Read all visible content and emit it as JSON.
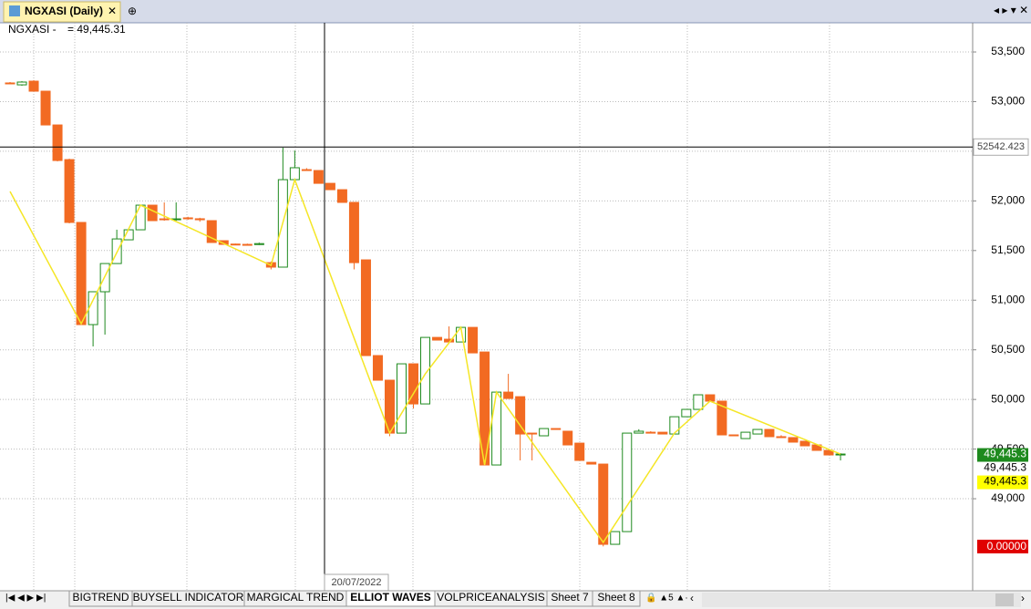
{
  "window_tab": "NGXASI (Daily)",
  "header": {
    "symbol": "NGXASI -",
    "value": "= 49,445.31"
  },
  "chart_data": {
    "type": "candlestick",
    "open": [
      53188,
      53169,
      53206,
      53105,
      52765,
      52416,
      51783,
      50754,
      51085,
      51369,
      51608,
      51709,
      51957,
      51819,
      51810,
      51829,
      51820,
      51801,
      51599,
      51565,
      51562,
      51560,
      51378,
      51333,
      52214,
      52315,
      52306,
      52177,
      52113,
      51985,
      51406,
      50442,
      50194,
      49661,
      50359,
      49955,
      50625,
      50607,
      50579,
      50726,
      50478,
      49340,
      50074,
      50028,
      49661,
      49634,
      49707,
      49680,
      49560,
      49367,
      49349,
      48541,
      48669,
      49661,
      49670,
      49670,
      49652,
      49826,
      49900,
      50047,
      49983,
      49643,
      49606,
      49652,
      49698,
      49625,
      49616,
      49579,
      49542,
      49487,
      49441
    ],
    "high": [
      53197,
      53206,
      53215,
      53105,
      52765,
      52425,
      51783,
      51085,
      51369,
      51710,
      51709,
      51957,
      51957,
      51985,
      51985,
      51840,
      51830,
      51801,
      51599,
      51570,
      51570,
      51580,
      51390,
      52536,
      52508,
      52330,
      52306,
      52177,
      52113,
      51985,
      51406,
      50442,
      50194,
      50359,
      50359,
      50625,
      50625,
      50736,
      50726,
      50726,
      50478,
      50074,
      50258,
      50028,
      49661,
      49707,
      49707,
      49680,
      49560,
      49367,
      49349,
      48669,
      49661,
      49700,
      49680,
      49670,
      49826,
      49900,
      50047,
      50047,
      49983,
      49643,
      49670,
      49698,
      49698,
      49640,
      49616,
      49579,
      49542,
      49487,
      49460
    ],
    "low": [
      53179,
      53160,
      53105,
      52765,
      52398,
      51774,
      50754,
      50534,
      50653,
      51369,
      51608,
      51709,
      51801,
      51800,
      51800,
      51810,
      51790,
      51581,
      51562,
      51555,
      51555,
      51555,
      51310,
      51333,
      52214,
      52306,
      52177,
      52113,
      51985,
      51310,
      50442,
      50194,
      49630,
      49661,
      49910,
      49955,
      50598,
      50560,
      50579,
      50469,
      49340,
      49340,
      50010,
      49386,
      49386,
      49634,
      49698,
      49542,
      49386,
      49349,
      48520,
      48541,
      48669,
      49661,
      49661,
      49652,
      49652,
      49826,
      49900,
      49983,
      49643,
      49634,
      49606,
      49652,
      49625,
      49616,
      49570,
      49533,
      49487,
      49441,
      49386
    ],
    "close": [
      53179,
      53197,
      53105,
      52765,
      52407,
      51783,
      50754,
      51085,
      51369,
      51617,
      51709,
      51957,
      51801,
      51810,
      51819,
      51820,
      51810,
      51581,
      51562,
      51562,
      51560,
      51570,
      51333,
      52214,
      52334,
      52306,
      52177,
      52113,
      51985,
      51378,
      50442,
      50194,
      49661,
      50359,
      49955,
      50625,
      50598,
      50579,
      50726,
      50469,
      49340,
      50074,
      50010,
      49652,
      49652,
      49707,
      49698,
      49542,
      49386,
      49349,
      48541,
      48669,
      49661,
      49680,
      49661,
      49652,
      49826,
      49900,
      50047,
      49983,
      49643,
      49634,
      49670,
      49698,
      49625,
      49616,
      49570,
      49533,
      49487,
      49441,
      49450
    ],
    "up_color": "#1e8a1e",
    "down_color": "#f26a22",
    "wave": {
      "x": [
        0,
        6,
        11,
        22,
        24,
        32,
        35,
        38,
        40,
        41,
        50,
        56,
        59,
        70
      ],
      "values": [
        52095,
        50763,
        51957,
        51351,
        52214,
        49661,
        50258,
        50726,
        49340,
        50074,
        48560,
        49661,
        49983,
        49450
      ],
      "color": "#f5e626"
    },
    "ylim": [
      48073,
      53794
    ],
    "yticks": [
      {
        "value": 49000,
        "label": "49,000"
      },
      {
        "value": 49500,
        "label": "49,500"
      },
      {
        "value": 50000,
        "label": "50,000"
      },
      {
        "value": 50500,
        "label": "50,500"
      },
      {
        "value": 51000,
        "label": "51,000"
      },
      {
        "value": 51500,
        "label": "51,500"
      },
      {
        "value": 52000,
        "label": "52,000"
      },
      {
        "value": 52500,
        "label": "52,500"
      },
      {
        "value": 53000,
        "label": "53,000"
      },
      {
        "value": 53500,
        "label": "53,500"
      }
    ],
    "grid": true,
    "crosshair": {
      "value": 52542.423,
      "date": "20/07/2022"
    },
    "price_labels": [
      {
        "value": 49445.3,
        "label": "49,445.3",
        "color": "#1e8a1e"
      },
      {
        "value": 49445.3,
        "label": "49,445.3",
        "color": "#ffffff"
      },
      {
        "value": 49445.3,
        "label": "49,445.3",
        "color": "#ffff00"
      }
    ],
    "zero_label": "0.00000"
  },
  "sheet_tabs": [
    "BIGTREND",
    "BUYSELL INDICATOR",
    "MARGICAL TREND",
    "ELLIOT WAVES",
    "VOLPRICEANALYSIS",
    "Sheet 7",
    "Sheet 8"
  ],
  "active_tab": 3
}
